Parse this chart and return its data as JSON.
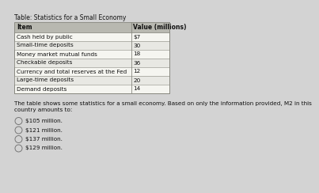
{
  "title": "Table: Statistics for a Small Economy",
  "table_headers": [
    "Item",
    "Value (millions)"
  ],
  "table_rows": [
    [
      "Cash held by public",
      "$7"
    ],
    [
      "Small-time deposits",
      "30"
    ],
    [
      "Money market mutual funds",
      "18"
    ],
    [
      "Checkable deposits",
      "36"
    ],
    [
      "Currency and total reserves at the Fed",
      "12"
    ],
    [
      "Large-time deposits",
      "20"
    ],
    [
      "Demand deposits",
      "14"
    ]
  ],
  "question_text": "The table shows some statistics for a small economy. Based on only the information provided, M2 in this\ncountry amounts to:",
  "options": [
    "$105 million.",
    "$121 million.",
    "$137 million.",
    "$129 million."
  ],
  "bg_color": "#d3d3d3",
  "table_bg": "#f5f5f0",
  "header_bg": "#b8b8b0",
  "row_alt_bg": "#e8e8e3",
  "text_color": "#111111",
  "border_color": "#888880"
}
